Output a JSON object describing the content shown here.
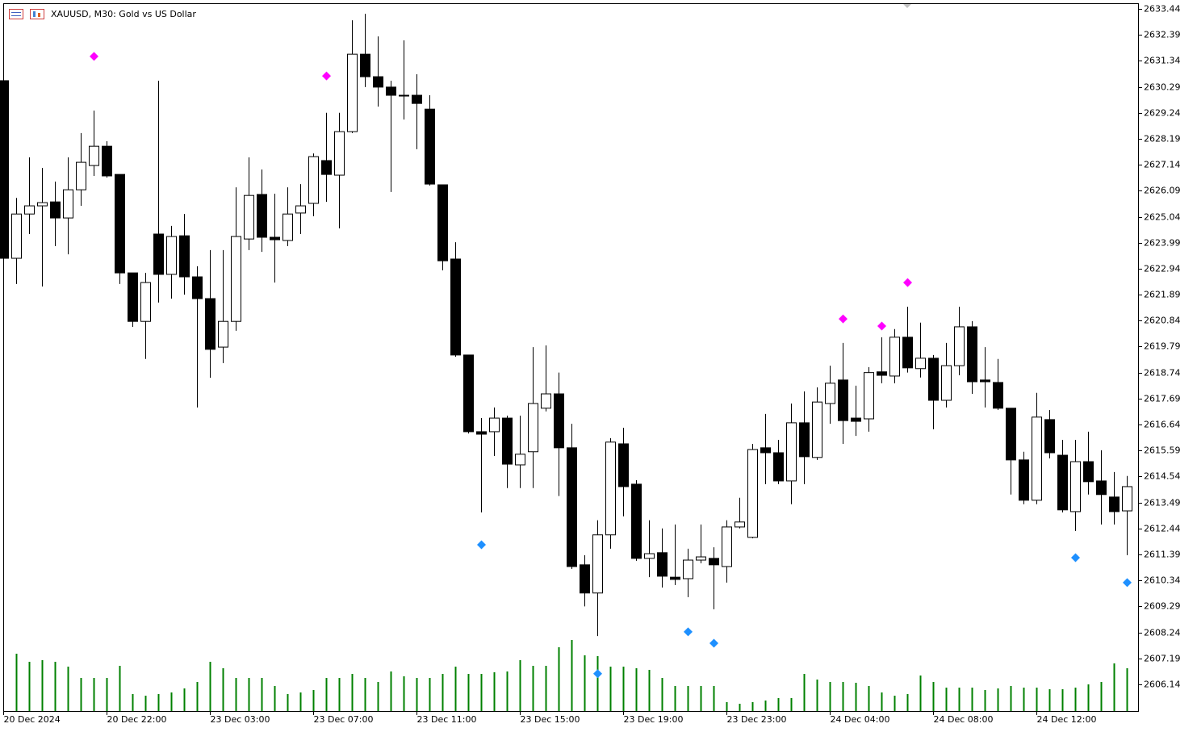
{
  "chart_data": {
    "type": "candlestick",
    "title": "XAUUSD, M30:  Gold vs US Dollar",
    "categories": [
      "20 Dec 2024",
      null,
      null,
      null,
      null,
      null,
      null,
      null,
      "20 Dec 22:00",
      null,
      null,
      null,
      null,
      null,
      null,
      null,
      "23 Dec 03:00",
      null,
      null,
      null,
      null,
      null,
      null,
      null,
      "23 Dec 07:00",
      null,
      null,
      null,
      null,
      null,
      null,
      null,
      "23 Dec 11:00",
      null,
      null,
      null,
      null,
      null,
      null,
      null,
      "23 Dec 15:00",
      null,
      null,
      null,
      null,
      null,
      null,
      null,
      "23 Dec 19:00",
      null,
      null,
      null,
      null,
      null,
      null,
      null,
      "23 Dec 23:00",
      null,
      null,
      null,
      null,
      null,
      null,
      null,
      "24 Dec 04:00",
      null,
      null,
      null,
      null,
      null,
      null,
      null,
      "24 Dec 08:00",
      null,
      null,
      null,
      null,
      null,
      null,
      null,
      "24 Dec 12:00",
      null,
      null,
      null,
      null,
      null,
      null,
      null
    ],
    "open": [
      2630.54,
      2623.36,
      2625.15,
      2625.48,
      2625.64,
      2624.99,
      2626.13,
      2627.11,
      2627.89,
      2626.75,
      2622.77,
      2620.81,
      2624.34,
      2622.71,
      2624.27,
      2622.61,
      2621.73,
      2619.77,
      2620.81,
      2624.14,
      2625.94,
      2624.21,
      2624.08,
      2625.19,
      2625.58,
      2627.31,
      2626.72,
      2628.48,
      2631.61,
      2630.7,
      2630.28,
      2629.95,
      2629.95,
      2629.39,
      2626.33,
      2623.33,
      2619.45,
      2616.35,
      2616.35,
      2616.9,
      2615.01,
      2615.54,
      2617.3,
      2617.88,
      2615.7,
      2610.97,
      2609.83,
      2612.18,
      2615.86,
      2614.23,
      2611.23,
      2611.46,
      2610.47,
      2610.41,
      2611.16,
      2611.23,
      2610.9,
      2612.5,
      2612.08,
      2615.7,
      2615.5,
      2614.36,
      2616.71,
      2615.31,
      2617.49,
      2618.44,
      2616.9,
      2616.87,
      2618.77,
      2618.6,
      2620.17,
      2618.9,
      2619.32,
      2617.62,
      2619.02,
      2620.59,
      2618.44,
      2618.34,
      2617.3,
      2615.21,
      2613.58,
      2616.84,
      2615.4,
      2613.12,
      2615.14,
      2614.36,
      2613.71,
      2613.15
    ],
    "high": [
      2630.6,
      2625.8,
      2627.44,
      2627.01,
      2626.46,
      2627.44,
      2628.42,
      2629.33,
      2628.09,
      2626.75,
      2622.77,
      2622.77,
      2630.54,
      2624.67,
      2625.15,
      2623.04,
      2623.69,
      2623.69,
      2626.23,
      2627.44,
      2626.95,
      2625.97,
      2626.23,
      2626.36,
      2627.6,
      2629.24,
      2629.24,
      2632.98,
      2633.24,
      2632.33,
      2630.54,
      2632.17,
      2630.8,
      2629.95,
      2626.33,
      2624.01,
      2619.45,
      2616.9,
      2617.33,
      2617.0,
      2617.0,
      2619.77,
      2619.84,
      2618.74,
      2616.67,
      2611.36,
      2612.77,
      2616.09,
      2616.51,
      2614.39,
      2612.77,
      2612.44,
      2612.6,
      2611.62,
      2612.6,
      2611.68,
      2612.77,
      2613.68,
      2615.86,
      2617.07,
      2616.02,
      2617.49,
      2617.98,
      2618.14,
      2619.02,
      2619.94,
      2618.21,
      2618.96,
      2620.17,
      2620.5,
      2621.4,
      2620.76,
      2619.45,
      2619.94,
      2621.4,
      2620.82,
      2619.77,
      2619.29,
      2617.3,
      2615.54,
      2617.92,
      2617.23,
      2616.02,
      2616.02,
      2616.35,
      2615.6,
      2614.72,
      2614.56
    ],
    "low": [
      2623.3,
      2622.32,
      2624.34,
      2622.22,
      2623.85,
      2623.52,
      2625.48,
      2626.69,
      2626.62,
      2622.32,
      2620.59,
      2619.29,
      2621.57,
      2621.73,
      2621.89,
      2617.33,
      2618.53,
      2619.12,
      2620.43,
      2623.69,
      2623.62,
      2622.38,
      2623.85,
      2624.34,
      2625.06,
      2625.64,
      2624.57,
      2628.42,
      2630.28,
      2629.49,
      2626.04,
      2628.97,
      2627.77,
      2626.3,
      2622.87,
      2619.38,
      2616.28,
      2613.09,
      2615.37,
      2614.07,
      2614.07,
      2614.07,
      2617.17,
      2613.75,
      2610.8,
      2609.29,
      2608.09,
      2611.62,
      2612.93,
      2611.13,
      2610.47,
      2610.05,
      2610.15,
      2609.66,
      2611.03,
      2609.17,
      2610.25,
      2612.44,
      2612.04,
      2614.23,
      2614.23,
      2613.42,
      2614.23,
      2615.21,
      2616.67,
      2615.86,
      2616.18,
      2616.35,
      2618.31,
      2618.31,
      2618.74,
      2618.54,
      2616.45,
      2617.33,
      2618.63,
      2617.88,
      2617.33,
      2617.23,
      2613.81,
      2613.42,
      2613.42,
      2615.27,
      2613.09,
      2612.34,
      2613.81,
      2612.6,
      2612.6,
      2611.36
    ],
    "close": [
      2623.36,
      2625.15,
      2625.48,
      2625.61,
      2624.99,
      2626.13,
      2627.24,
      2627.89,
      2626.69,
      2622.77,
      2620.81,
      2622.38,
      2622.71,
      2624.24,
      2622.61,
      2621.73,
      2619.68,
      2620.81,
      2624.24,
      2625.9,
      2624.21,
      2624.11,
      2625.15,
      2625.48,
      2627.47,
      2626.75,
      2628.48,
      2631.61,
      2630.7,
      2630.28,
      2629.95,
      2629.95,
      2629.62,
      2626.36,
      2623.26,
      2619.45,
      2616.35,
      2616.25,
      2616.9,
      2615.04,
      2615.44,
      2617.49,
      2617.88,
      2615.7,
      2610.9,
      2609.83,
      2612.18,
      2615.93,
      2614.13,
      2611.23,
      2611.42,
      2610.51,
      2610.38,
      2611.16,
      2611.29,
      2610.97,
      2612.5,
      2612.7,
      2615.63,
      2615.5,
      2614.36,
      2616.71,
      2615.34,
      2617.55,
      2618.31,
      2616.8,
      2616.77,
      2618.74,
      2618.63,
      2620.17,
      2618.93,
      2619.32,
      2617.62,
      2619.02,
      2620.59,
      2618.37,
      2618.37,
      2617.3,
      2615.21,
      2613.58,
      2616.94,
      2615.5,
      2613.19,
      2615.14,
      2614.33,
      2613.81,
      2613.12,
      2614.13
    ],
    "volume": [
      null,
      71,
      61,
      63,
      61,
      55,
      41,
      41,
      41,
      56,
      21,
      19,
      21,
      23,
      28,
      36,
      61,
      53,
      41,
      41,
      41,
      31,
      21,
      23,
      26,
      41,
      41,
      46,
      41,
      36,
      49,
      43,
      41,
      41,
      46,
      55,
      46,
      46,
      48,
      49,
      63,
      56,
      56,
      79,
      88,
      69,
      68,
      55,
      55,
      53,
      51,
      41,
      31,
      31,
      31,
      31,
      11,
      9,
      11,
      13,
      16,
      16,
      46,
      39,
      36,
      36,
      35,
      31,
      23,
      19,
      21,
      44,
      36,
      29,
      29,
      29,
      26,
      28,
      31,
      29,
      29,
      27,
      27,
      29,
      33,
      36,
      59,
      53
    ],
    "volume_color": "#008000",
    "fractals_up": [
      null,
      null,
      null,
      null,
      null,
      null,
      null,
      2631.52,
      null,
      null,
      null,
      null,
      null,
      null,
      null,
      null,
      null,
      null,
      null,
      null,
      null,
      null,
      null,
      null,
      null,
      2630.73,
      null,
      null,
      null,
      null,
      null,
      null,
      null,
      null,
      null,
      null,
      null,
      null,
      null,
      null,
      null,
      null,
      null,
      null,
      null,
      null,
      null,
      null,
      null,
      null,
      null,
      null,
      null,
      null,
      null,
      null,
      null,
      null,
      null,
      null,
      null,
      null,
      null,
      null,
      null,
      2620.91,
      null,
      null,
      2620.62,
      null,
      2622.38,
      null,
      null,
      null,
      null,
      null,
      null,
      null,
      null,
      null,
      null,
      null,
      null,
      null,
      null,
      null,
      null,
      null
    ],
    "fractals_up_color": "#ff00ff",
    "fractals_down": [
      null,
      null,
      null,
      null,
      null,
      null,
      null,
      null,
      null,
      null,
      null,
      null,
      null,
      null,
      null,
      null,
      null,
      null,
      null,
      null,
      null,
      null,
      null,
      null,
      null,
      null,
      null,
      null,
      null,
      null,
      null,
      null,
      null,
      null,
      null,
      null,
      null,
      2611.78,
      null,
      null,
      null,
      null,
      null,
      null,
      null,
      null,
      2606.57,
      null,
      null,
      null,
      null,
      null,
      null,
      2608.26,
      null,
      2607.8,
      null,
      null,
      null,
      null,
      null,
      null,
      null,
      null,
      null,
      null,
      null,
      null,
      null,
      null,
      null,
      null,
      null,
      null,
      null,
      null,
      null,
      null,
      null,
      null,
      null,
      null,
      null,
      2611.26,
      null,
      null,
      null,
      2610.25
    ],
    "fractals_down_color": "#1e90ff",
    "ylim": [
      2605.06,
      2633.67
    ],
    "yticks": [
      2606.14,
      2607.19,
      2608.24,
      2609.29,
      2610.34,
      2611.39,
      2612.44,
      2613.49,
      2614.54,
      2615.59,
      2616.64,
      2617.69,
      2618.74,
      2619.79,
      2620.84,
      2621.89,
      2622.94,
      2623.99,
      2625.04,
      2626.09,
      2627.14,
      2628.19,
      2629.24,
      2630.29,
      2631.34,
      2632.39,
      2633.44
    ],
    "grid": false
  }
}
